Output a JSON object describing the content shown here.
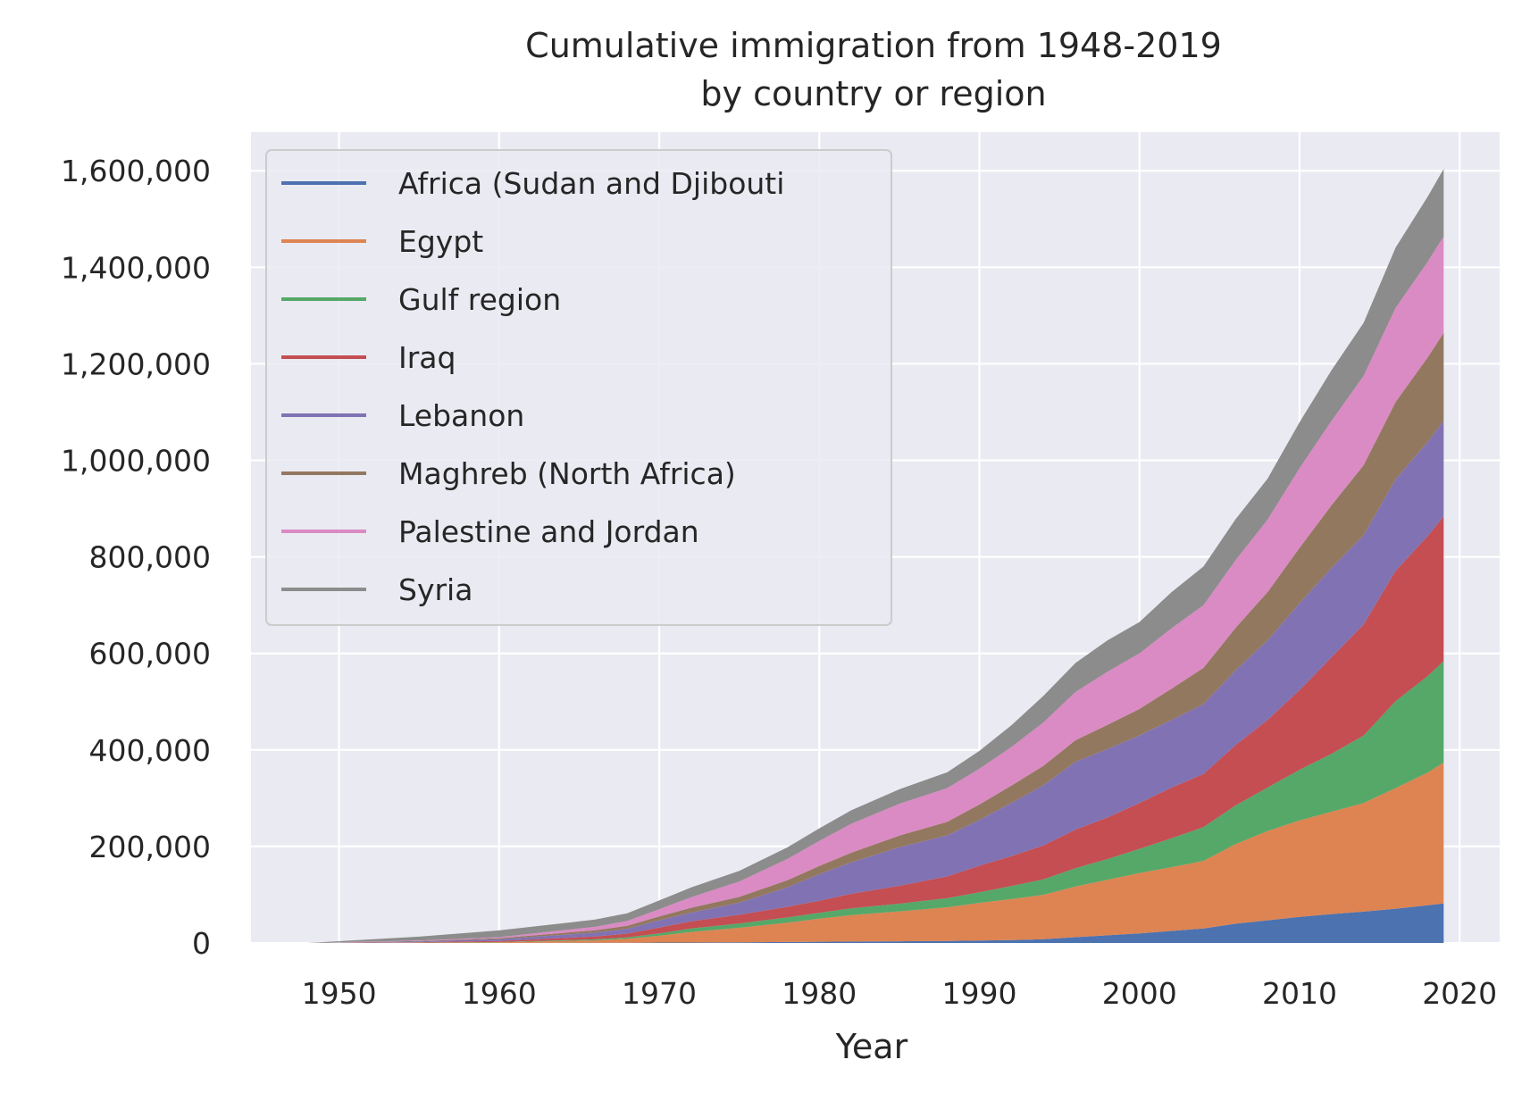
{
  "chart_data": {
    "type": "area",
    "stacked": true,
    "title": "Cumulative immigration from 1948-2019",
    "subtitle": "by country or region",
    "xlabel": "Year",
    "ylabel": "",
    "xlim": [
      1944.5,
      2022.5
    ],
    "ylim": [
      0,
      1680000
    ],
    "xticks": [
      1950,
      1960,
      1970,
      1980,
      1990,
      2000,
      2010,
      2020
    ],
    "xtick_labels": [
      "1950",
      "1960",
      "1970",
      "1980",
      "1990",
      "2000",
      "2010",
      "2020"
    ],
    "yticks": [
      0,
      200000,
      400000,
      600000,
      800000,
      1000000,
      1200000,
      1400000,
      1600000
    ],
    "ytick_labels": [
      "0",
      "200,000",
      "400,000",
      "600,000",
      "800,000",
      "1,000,000",
      "1,200,000",
      "1,400,000",
      "1,600,000"
    ],
    "grid": true,
    "legend_position": "top-left",
    "x": [
      1948,
      1955,
      1960,
      1966,
      1968,
      1970,
      1972,
      1975,
      1978,
      1980,
      1982,
      1985,
      1988,
      1990,
      1992,
      1994,
      1996,
      1998,
      2000,
      2002,
      2004,
      2006,
      2008,
      2010,
      2012,
      2014,
      2016,
      2018,
      2019
    ],
    "series": [
      {
        "name": "Africa (Sudan and Djibouti",
        "color": "#4c72b0",
        "values": [
          0,
          0,
          0,
          500,
          500,
          1000,
          1000,
          1500,
          2000,
          2500,
          3000,
          3500,
          4000,
          5000,
          6000,
          8000,
          12000,
          16000,
          20000,
          25000,
          30000,
          40000,
          47000,
          54000,
          60000,
          65000,
          71000,
          78000,
          82000
        ]
      },
      {
        "name": "Egypt",
        "color": "#dd8452",
        "values": [
          0,
          500,
          1500,
          5000,
          8000,
          14000,
          22000,
          30000,
          40000,
          48000,
          55000,
          62000,
          70000,
          78000,
          85000,
          92000,
          105000,
          115000,
          125000,
          132000,
          140000,
          165000,
          185000,
          200000,
          212000,
          225000,
          250000,
          275000,
          292000
        ]
      },
      {
        "name": "Gulf region",
        "color": "#55a868",
        "values": [
          0,
          200,
          500,
          2000,
          3000,
          5000,
          7000,
          9000,
          11000,
          12000,
          14000,
          16000,
          19000,
          22000,
          27000,
          32000,
          38000,
          43000,
          50000,
          60000,
          70000,
          80000,
          90000,
          105000,
          120000,
          140000,
          180000,
          200000,
          210000
        ]
      },
      {
        "name": "Iraq",
        "color": "#c44e52",
        "values": [
          0,
          1000,
          2000,
          6000,
          8000,
          12000,
          15000,
          18000,
          22000,
          25000,
          30000,
          37000,
          45000,
          55000,
          62000,
          70000,
          80000,
          86000,
          95000,
          105000,
          110000,
          125000,
          140000,
          165000,
          200000,
          230000,
          270000,
          290000,
          300000
        ]
      },
      {
        "name": "Lebanon",
        "color": "#8172b3",
        "values": [
          0,
          1500,
          4000,
          8000,
          10000,
          15000,
          18000,
          25000,
          40000,
          55000,
          65000,
          80000,
          85000,
          95000,
          110000,
          125000,
          140000,
          142000,
          140000,
          140000,
          145000,
          155000,
          165000,
          180000,
          185000,
          185000,
          190000,
          195000,
          198000
        ]
      },
      {
        "name": "Maghreb (North Africa)",
        "color": "#937860",
        "values": [
          0,
          1000,
          2000,
          5000,
          6000,
          8000,
          10000,
          12000,
          15000,
          17000,
          20000,
          24000,
          28000,
          32000,
          36000,
          40000,
          45000,
          50000,
          55000,
          65000,
          75000,
          88000,
          100000,
          115000,
          130000,
          145000,
          160000,
          175000,
          182000
        ]
      },
      {
        "name": "Palestine and Jordan",
        "color": "#da8bc3",
        "values": [
          0,
          1000,
          2000,
          7000,
          10000,
          15000,
          22000,
          32000,
          44000,
          52000,
          60000,
          66000,
          70000,
          74000,
          80000,
          90000,
          100000,
          110000,
          115000,
          125000,
          130000,
          140000,
          150000,
          165000,
          175000,
          185000,
          195000,
          198000,
          200000
        ]
      },
      {
        "name": "Syria",
        "color": "#8c8c8c",
        "values": [
          0,
          8000,
          14000,
          15000,
          16000,
          18000,
          20000,
          22000,
          24000,
          26000,
          28000,
          30000,
          33000,
          37000,
          45000,
          55000,
          60000,
          65000,
          65000,
          75000,
          80000,
          85000,
          85000,
          95000,
          105000,
          110000,
          125000,
          135000,
          140000
        ]
      }
    ]
  }
}
